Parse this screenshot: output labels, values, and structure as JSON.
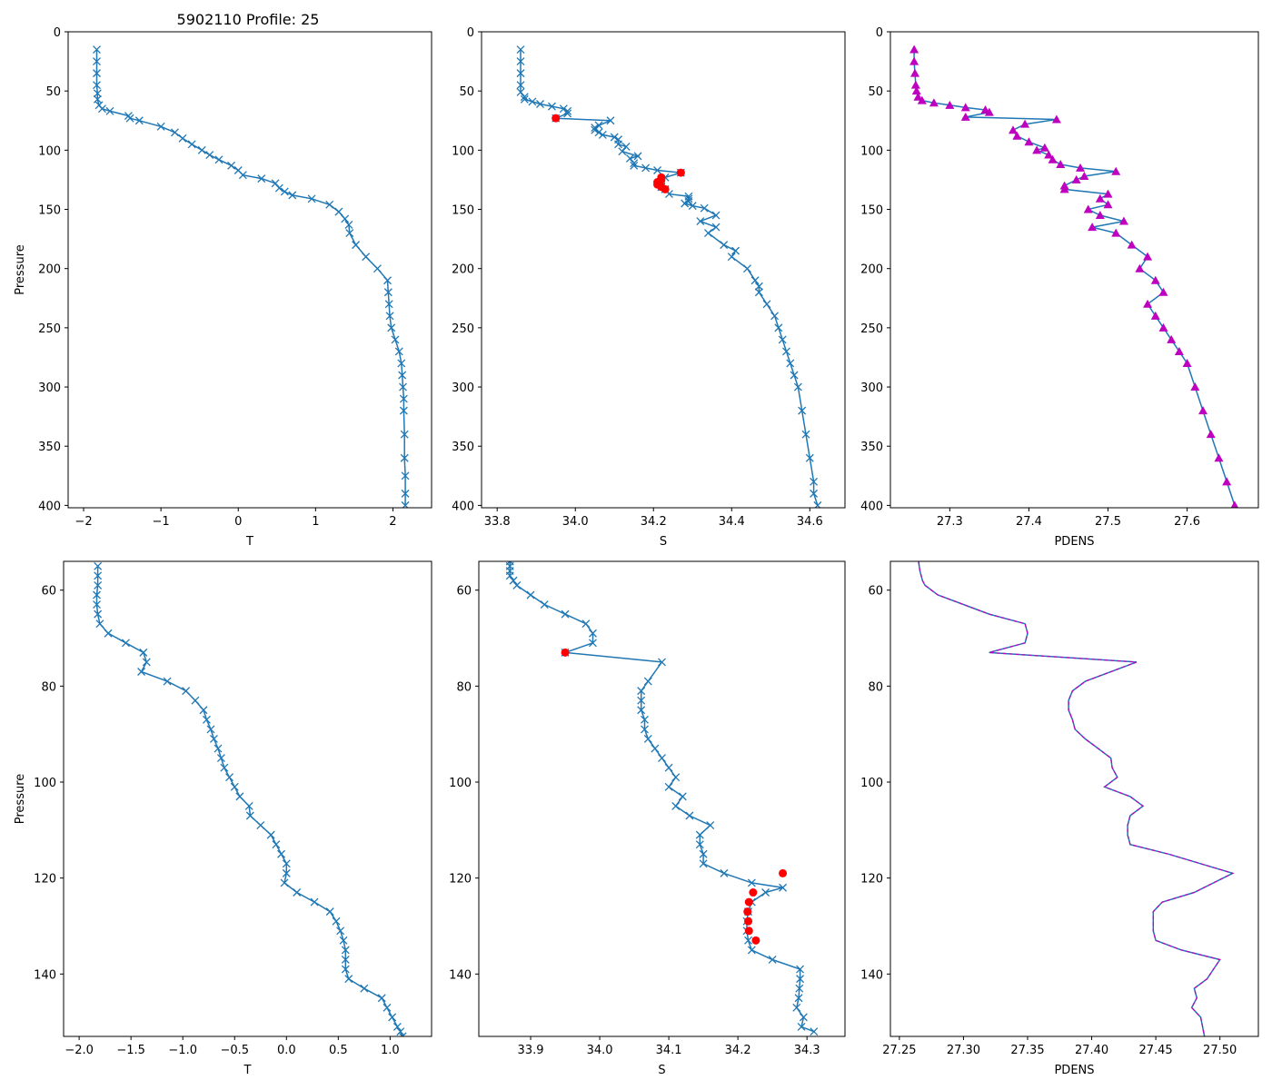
{
  "figure_title": "5902110 Profile: 25",
  "colors": {
    "line": "#1f77b4",
    "flag": "#ff0000",
    "density": "#bf00bf",
    "dash": "#d62728"
  },
  "chart_data": [
    {
      "id": "top-temperature",
      "type": "line",
      "xlabel": "T",
      "ylabel": "Pressure",
      "xlim": [
        -2.2,
        2.5
      ],
      "ylim": [
        0,
        402
      ],
      "y_inverted": true,
      "xticks": [
        -2,
        -1,
        0,
        1,
        2
      ],
      "yticks": [
        0,
        50,
        100,
        150,
        200,
        250,
        300,
        350,
        400
      ],
      "xtick_labels": [
        "−2",
        "−1",
        "0",
        "1",
        "2"
      ],
      "ytick_labels": [
        "0",
        "50",
        "100",
        "150",
        "200",
        "250",
        "300",
        "350",
        "400"
      ],
      "series": [
        {
          "name": "T",
          "marker": "x",
          "x": [
            -1.83,
            -1.83,
            -1.83,
            -1.83,
            -1.82,
            -1.82,
            -1.8,
            -1.76,
            -1.66,
            -1.42,
            -1.4,
            -1.28,
            -1.0,
            -0.82,
            -0.72,
            -0.6,
            -0.47,
            -0.37,
            -0.25,
            -0.09,
            0,
            0.06,
            0.3,
            0.48,
            0.53,
            0.6,
            0.7,
            0.95,
            1.18,
            1.3,
            1.38,
            1.43,
            1.44,
            1.52,
            1.65,
            1.8,
            1.93,
            1.94,
            1.95,
            1.96,
            1.98,
            2.03,
            2.08,
            2.11,
            2.12,
            2.13,
            2.14,
            2.14,
            2.15,
            2.15,
            2.16,
            2.16,
            2.16
          ],
          "y": [
            15,
            25,
            35,
            45,
            52,
            57,
            62,
            65,
            67,
            71,
            73,
            75,
            80,
            85,
            90,
            95,
            100,
            104,
            108,
            113,
            117,
            121,
            124,
            128,
            132,
            135,
            138,
            141,
            146,
            152,
            158,
            163,
            170,
            180,
            190,
            200,
            210,
            220,
            230,
            240,
            250,
            260,
            270,
            280,
            290,
            300,
            310,
            320,
            340,
            360,
            375,
            390,
            400
          ]
        }
      ]
    },
    {
      "id": "top-salinity",
      "type": "line",
      "xlabel": "S",
      "ylabel": "",
      "xlim": [
        33.76,
        34.69
      ],
      "ylim": [
        0,
        402
      ],
      "y_inverted": true,
      "xticks": [
        33.8,
        34.0,
        34.2,
        34.4,
        34.6
      ],
      "yticks": [
        0,
        50,
        100,
        150,
        200,
        250,
        300,
        350,
        400
      ],
      "xtick_labels": [
        "33.8",
        "34.0",
        "34.2",
        "34.4",
        "34.6"
      ],
      "ytick_labels": [
        "0",
        "50",
        "100",
        "150",
        "200",
        "250",
        "300",
        "350",
        "400"
      ],
      "series": [
        {
          "name": "S",
          "marker": "x",
          "x": [
            33.86,
            33.86,
            33.86,
            33.86,
            33.86,
            33.87,
            33.87,
            33.89,
            33.91,
            33.94,
            33.97,
            33.98,
            33.98,
            33.95,
            34.09,
            34.06,
            34.05,
            34.05,
            34.06,
            34.07,
            34.1,
            34.11,
            34.11,
            34.13,
            34.12,
            34.16,
            34.14,
            34.15,
            34.15,
            34.18,
            34.21,
            34.27,
            34.23,
            34.22,
            34.22,
            34.22,
            34.22,
            34.23,
            34.24,
            34.29,
            34.29,
            34.29,
            34.28,
            34.3,
            34.33,
            34.36,
            34.32,
            34.36,
            34.34,
            34.38,
            34.41,
            34.4,
            34.44,
            34.46,
            34.47,
            34.47,
            34.49,
            34.51,
            34.52,
            34.53,
            34.54,
            34.55,
            34.56,
            34.57,
            34.58,
            34.59,
            34.6,
            34.61,
            34.61,
            34.62
          ],
          "y": [
            15,
            25,
            35,
            45,
            51,
            55,
            57,
            59,
            61,
            63,
            65,
            67,
            69,
            73,
            75,
            79,
            81,
            83,
            85,
            87,
            89,
            91,
            95,
            97,
            101,
            105,
            107,
            111,
            113,
            115,
            117,
            119,
            123,
            125,
            127,
            129,
            131,
            133,
            137,
            139,
            141,
            143,
            145,
            147,
            149,
            155,
            160,
            165,
            170,
            180,
            185,
            190,
            200,
            210,
            215,
            220,
            230,
            240,
            250,
            260,
            270,
            280,
            290,
            300,
            320,
            340,
            360,
            380,
            390,
            400
          ]
        },
        {
          "name": "flagged",
          "marker": "circle",
          "x": [
            33.95,
            34.27,
            34.22,
            34.22,
            34.21,
            34.21,
            34.22,
            34.23
          ],
          "y": [
            73,
            119,
            123,
            125,
            127,
            129,
            131,
            133
          ]
        }
      ]
    },
    {
      "id": "top-density",
      "type": "line",
      "xlabel": "PDENS",
      "ylabel": "",
      "xlim": [
        27.225,
        27.69
      ],
      "ylim": [
        0,
        402
      ],
      "y_inverted": true,
      "xticks": [
        27.3,
        27.4,
        27.5,
        27.6
      ],
      "yticks": [
        0,
        50,
        100,
        150,
        200,
        250,
        300,
        350,
        400
      ],
      "xtick_labels": [
        "27.3",
        "27.4",
        "27.5",
        "27.6"
      ],
      "ytick_labels": [
        "0",
        "50",
        "100",
        "150",
        "200",
        "250",
        "300",
        "350",
        "400"
      ],
      "series": [
        {
          "name": "PDENS",
          "marker": "triangle",
          "x": [
            27.255,
            27.255,
            27.256,
            27.257,
            27.258,
            27.26,
            27.265,
            27.28,
            27.3,
            27.32,
            27.345,
            27.35,
            27.32,
            27.435,
            27.395,
            27.38,
            27.385,
            27.4,
            27.42,
            27.41,
            27.425,
            27.43,
            27.44,
            27.465,
            27.51,
            27.47,
            27.46,
            27.445,
            27.445,
            27.5,
            27.49,
            27.5,
            27.475,
            27.49,
            27.52,
            27.48,
            27.51,
            27.53,
            27.55,
            27.54,
            27.56,
            27.57,
            27.55,
            27.56,
            27.57,
            27.58,
            27.59,
            27.6,
            27.61,
            27.62,
            27.63,
            27.64,
            27.65,
            27.66
          ],
          "y": [
            15,
            25,
            35,
            45,
            50,
            55,
            58,
            60,
            62,
            64,
            66,
            68,
            72,
            74,
            78,
            83,
            88,
            93,
            98,
            100,
            104,
            108,
            112,
            115,
            118,
            122,
            125,
            130,
            133,
            137,
            141,
            146,
            150,
            155,
            160,
            165,
            170,
            180,
            190,
            200,
            210,
            220,
            230,
            240,
            250,
            260,
            270,
            280,
            300,
            320,
            340,
            360,
            380,
            400
          ]
        }
      ]
    },
    {
      "id": "bottom-temperature",
      "type": "line",
      "xlabel": "T",
      "ylabel": "Pressure",
      "xlim": [
        -2.15,
        1.4
      ],
      "ylim": [
        54,
        153
      ],
      "y_inverted": true,
      "xticks": [
        -2.0,
        -1.5,
        -1.0,
        -0.5,
        0.0,
        0.5,
        1.0
      ],
      "yticks": [
        60,
        80,
        100,
        120,
        140
      ],
      "xtick_labels": [
        "−2.0",
        "−1.5",
        "−1.0",
        "−0.5",
        "0.0",
        "0.5",
        "1.0"
      ],
      "ytick_labels": [
        "60",
        "80",
        "100",
        "120",
        "140"
      ],
      "series": [
        {
          "name": "T",
          "marker": "x",
          "x": [
            -1.82,
            -1.82,
            -1.82,
            -1.83,
            -1.83,
            -1.82,
            -1.8,
            -1.72,
            -1.55,
            -1.38,
            -1.35,
            -1.4,
            -1.15,
            -0.97,
            -0.88,
            -0.8,
            -0.77,
            -0.73,
            -0.7,
            -0.66,
            -0.63,
            -0.6,
            -0.55,
            -0.5,
            -0.45,
            -0.36,
            -0.35,
            -0.25,
            -0.15,
            -0.1,
            -0.05,
            0.0,
            0.0,
            -0.02,
            0.1,
            0.27,
            0.42,
            0.48,
            0.52,
            0.55,
            0.57,
            0.57,
            0.57,
            0.6,
            0.75,
            0.92,
            0.97,
            1.02,
            1.07,
            1.1,
            1.12
          ],
          "y": [
            55,
            57,
            59,
            61,
            63,
            65,
            67,
            69,
            71,
            73,
            75,
            77,
            79,
            81,
            83,
            85,
            87,
            89,
            91,
            93,
            95,
            97,
            99,
            101,
            103,
            105,
            107,
            109,
            111,
            113,
            115,
            117,
            119,
            121,
            123,
            125,
            127,
            129,
            131,
            133,
            135,
            137,
            139,
            141,
            143,
            145,
            147,
            149,
            151,
            152,
            153
          ]
        }
      ]
    },
    {
      "id": "bottom-salinity",
      "type": "line",
      "xlabel": "S",
      "ylabel": "",
      "xlim": [
        33.825,
        34.355
      ],
      "ylim": [
        54,
        153
      ],
      "y_inverted": true,
      "xticks": [
        33.9,
        34.0,
        34.1,
        34.2,
        34.3
      ],
      "yticks": [
        60,
        80,
        100,
        120,
        140
      ],
      "xtick_labels": [
        "33.9",
        "34.0",
        "34.1",
        "34.2",
        "34.3"
      ],
      "ytick_labels": [
        "60",
        "80",
        "100",
        "120",
        "140"
      ],
      "series": [
        {
          "name": "S",
          "marker": "x",
          "x": [
            33.87,
            33.87,
            33.87,
            33.87,
            33.875,
            33.88,
            33.9,
            33.92,
            33.95,
            33.98,
            33.99,
            33.99,
            33.95,
            34.09,
            34.07,
            34.06,
            34.06,
            34.06,
            34.065,
            34.065,
            34.07,
            34.08,
            34.09,
            34.1,
            34.11,
            34.1,
            34.12,
            34.11,
            34.13,
            34.16,
            34.145,
            34.145,
            34.15,
            34.15,
            34.18,
            34.22,
            34.265,
            34.24,
            34.22,
            34.215,
            34.213,
            34.213,
            34.215,
            34.22,
            34.25,
            34.29,
            34.29,
            34.289,
            34.288,
            34.285,
            34.295,
            34.292,
            34.31
          ],
          "y": [
            54,
            55,
            56,
            57,
            58,
            59,
            61,
            63,
            65,
            67,
            69,
            71,
            73,
            75,
            79,
            81,
            83,
            85,
            87,
            89,
            91,
            93,
            95,
            97,
            99,
            101,
            103,
            105,
            107,
            109,
            111,
            113,
            115,
            117,
            119,
            121,
            122,
            123,
            125,
            127,
            129,
            131,
            133,
            135,
            137,
            139,
            141,
            143,
            145,
            147,
            149,
            151,
            152
          ]
        },
        {
          "name": "flagged",
          "marker": "circle",
          "x": [
            33.95,
            34.265,
            34.222,
            34.216,
            34.214,
            34.215,
            34.216,
            34.226
          ],
          "y": [
            73,
            119,
            123,
            125,
            127,
            129,
            131,
            133
          ]
        }
      ]
    },
    {
      "id": "bottom-density",
      "type": "line",
      "xlabel": "PDENS",
      "ylabel": "",
      "xlim": [
        27.243,
        27.53
      ],
      "ylim": [
        54,
        153
      ],
      "y_inverted": true,
      "xticks": [
        27.25,
        27.3,
        27.35,
        27.4,
        27.45,
        27.5
      ],
      "yticks": [
        60,
        80,
        100,
        120,
        140
      ],
      "xtick_labels": [
        "27.25",
        "27.30",
        "27.35",
        "27.40",
        "27.45",
        "27.50"
      ],
      "ytick_labels": [
        "60",
        "80",
        "100",
        "120",
        "140"
      ],
      "series": [
        {
          "name": "PDENS",
          "marker": "none",
          "x": [
            27.265,
            27.266,
            27.268,
            27.27,
            27.28,
            27.3,
            27.32,
            27.348,
            27.35,
            27.348,
            27.32,
            27.435,
            27.395,
            27.385,
            27.382,
            27.382,
            27.385,
            27.387,
            27.395,
            27.405,
            27.415,
            27.416,
            27.42,
            27.41,
            27.43,
            27.44,
            27.43,
            27.428,
            27.428,
            27.43,
            27.46,
            27.51,
            27.48,
            27.455,
            27.448,
            27.448,
            27.448,
            27.45,
            27.47,
            27.5,
            27.495,
            27.49,
            27.48,
            27.482,
            27.478,
            27.485,
            27.488
          ],
          "y": [
            54,
            56,
            58,
            59,
            61,
            63,
            65,
            67,
            69,
            71,
            73,
            75,
            79,
            81,
            83,
            85,
            87,
            89,
            91,
            93,
            95,
            97,
            99,
            101,
            103,
            105,
            107,
            109,
            111,
            113,
            115,
            119,
            123,
            125,
            127,
            129,
            131,
            133,
            135,
            137,
            139,
            141,
            143,
            145,
            147,
            149,
            153
          ]
        }
      ]
    }
  ]
}
